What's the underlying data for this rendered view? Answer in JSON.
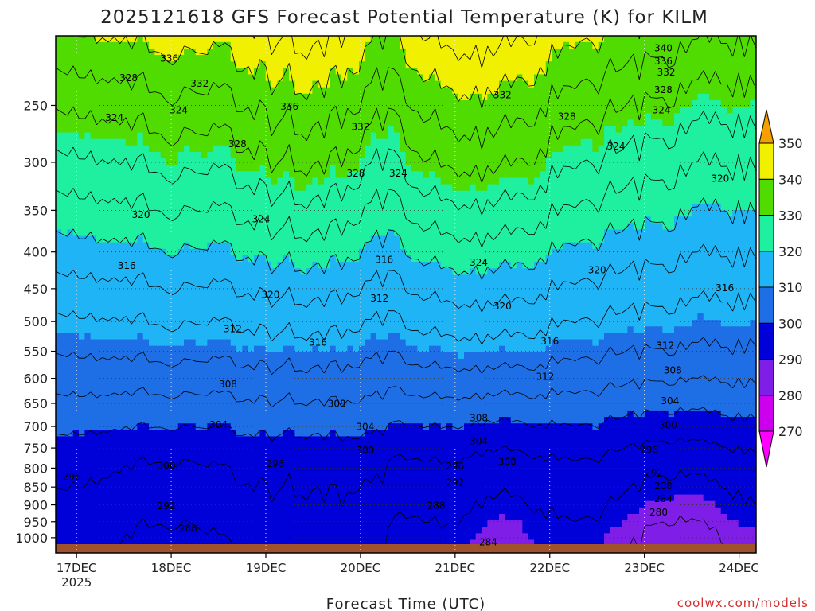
{
  "chart_data": {
    "type": "heatmap",
    "title": "2025121618 GFS Forecast Potential Temperature (K) for KILM",
    "xlabel": "Forecast Time (UTC)",
    "ylabel": "",
    "x_ticks": [
      {
        "label": "17DEC",
        "sub": "2025",
        "day": 0
      },
      {
        "label": "18DEC",
        "sub": "",
        "day": 1
      },
      {
        "label": "19DEC",
        "sub": "",
        "day": 2
      },
      {
        "label": "20DEC",
        "sub": "",
        "day": 3
      },
      {
        "label": "21DEC",
        "sub": "",
        "day": 4
      },
      {
        "label": "22DEC",
        "sub": "",
        "day": 5
      },
      {
        "label": "23DEC",
        "sub": "",
        "day": 6
      },
      {
        "label": "24DEC",
        "sub": "",
        "day": 7
      }
    ],
    "x_range_days": [
      -0.22,
      7.18
    ],
    "y_axis": "pressure (log scale, inverted)",
    "y_ticks": [
      250,
      300,
      350,
      400,
      450,
      500,
      550,
      600,
      650,
      700,
      750,
      800,
      850,
      900,
      950,
      1000
    ],
    "y_range": [
      200,
      1050
    ],
    "colorbar": {
      "levels": [
        270,
        280,
        290,
        300,
        310,
        320,
        330,
        340,
        350
      ],
      "colors": [
        "#ff00ff",
        "#cc00ee",
        "#7f1ee6",
        "#0000d8",
        "#1e6ee6",
        "#1fb4f5",
        "#1ef0a0",
        "#50dc00",
        "#f0f000",
        "#f5a000"
      ]
    },
    "contour_interval": 4,
    "contour_labels": [
      {
        "text": "340",
        "day": 6.2,
        "p": 208
      },
      {
        "text": "336",
        "day": 6.2,
        "p": 217
      },
      {
        "text": "332",
        "day": 6.23,
        "p": 225
      },
      {
        "text": "328",
        "day": 6.2,
        "p": 238
      },
      {
        "text": "324",
        "day": 6.18,
        "p": 254
      },
      {
        "text": "336",
        "day": 0.98,
        "p": 215
      },
      {
        "text": "328",
        "day": 0.55,
        "p": 229
      },
      {
        "text": "332",
        "day": 1.3,
        "p": 233
      },
      {
        "text": "324",
        "day": 1.08,
        "p": 254
      },
      {
        "text": "324",
        "day": 0.4,
        "p": 260
      },
      {
        "text": "336",
        "day": 2.25,
        "p": 251
      },
      {
        "text": "332",
        "day": 3.0,
        "p": 268
      },
      {
        "text": "328",
        "day": 1.7,
        "p": 283
      },
      {
        "text": "328",
        "day": 2.95,
        "p": 311
      },
      {
        "text": "324",
        "day": 3.4,
        "p": 311
      },
      {
        "text": "332",
        "day": 4.5,
        "p": 242
      },
      {
        "text": "328",
        "day": 5.18,
        "p": 259
      },
      {
        "text": "324",
        "day": 5.7,
        "p": 285
      },
      {
        "text": "320",
        "day": 6.8,
        "p": 316
      },
      {
        "text": "324",
        "day": 1.95,
        "p": 360
      },
      {
        "text": "320",
        "day": 0.68,
        "p": 355
      },
      {
        "text": "316",
        "day": 0.53,
        "p": 418
      },
      {
        "text": "316",
        "day": 3.25,
        "p": 410
      },
      {
        "text": "324",
        "day": 4.25,
        "p": 414
      },
      {
        "text": "320",
        "day": 5.5,
        "p": 424
      },
      {
        "text": "312",
        "day": 3.2,
        "p": 464
      },
      {
        "text": "320",
        "day": 2.05,
        "p": 459
      },
      {
        "text": "320",
        "day": 4.5,
        "p": 476
      },
      {
        "text": "316",
        "day": 6.85,
        "p": 449
      },
      {
        "text": "312",
        "day": 1.65,
        "p": 512
      },
      {
        "text": "316",
        "day": 2.55,
        "p": 535
      },
      {
        "text": "316",
        "day": 5.0,
        "p": 533
      },
      {
        "text": "312",
        "day": 6.22,
        "p": 540
      },
      {
        "text": "308",
        "day": 1.6,
        "p": 611
      },
      {
        "text": "312",
        "day": 4.95,
        "p": 597
      },
      {
        "text": "308",
        "day": 6.3,
        "p": 585
      },
      {
        "text": "308",
        "day": 2.75,
        "p": 651
      },
      {
        "text": "304",
        "day": 6.27,
        "p": 645
      },
      {
        "text": "308",
        "day": 4.25,
        "p": 681
      },
      {
        "text": "304",
        "day": 1.5,
        "p": 696
      },
      {
        "text": "304",
        "day": 3.05,
        "p": 701
      },
      {
        "text": "300",
        "day": 6.25,
        "p": 697
      },
      {
        "text": "304",
        "day": 4.25,
        "p": 734
      },
      {
        "text": "300",
        "day": 3.05,
        "p": 756
      },
      {
        "text": "296",
        "day": 6.05,
        "p": 755
      },
      {
        "text": "300",
        "day": 4.55,
        "p": 784
      },
      {
        "text": "296",
        "day": 4.0,
        "p": 795
      },
      {
        "text": "300",
        "day": 0.95,
        "p": 794
      },
      {
        "text": "296",
        "day": 2.1,
        "p": 789
      },
      {
        "text": "292",
        "day": 6.1,
        "p": 813
      },
      {
        "text": "296",
        "day": -0.05,
        "p": 822
      },
      {
        "text": "292",
        "day": 4.0,
        "p": 838
      },
      {
        "text": "288",
        "day": 6.2,
        "p": 848
      },
      {
        "text": "284",
        "day": 6.2,
        "p": 883
      },
      {
        "text": "292",
        "day": 0.95,
        "p": 903
      },
      {
        "text": "288",
        "day": 3.8,
        "p": 902
      },
      {
        "text": "280",
        "day": 6.15,
        "p": 922
      },
      {
        "text": "288",
        "day": 1.18,
        "p": 972
      },
      {
        "text": "284",
        "day": 4.35,
        "p": 1015
      }
    ]
  },
  "watermark": "coolwx.com/models"
}
